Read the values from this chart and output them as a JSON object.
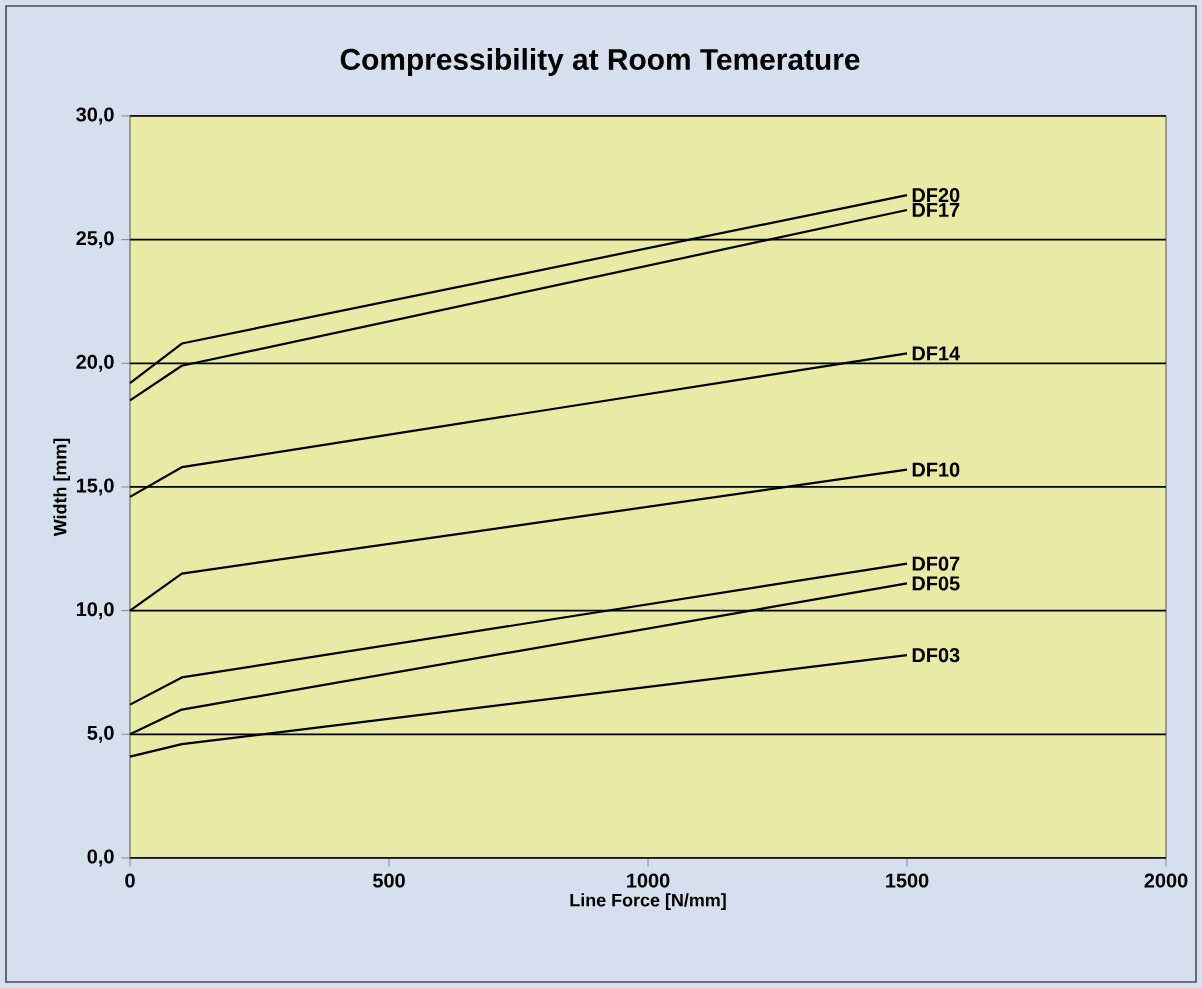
{
  "chart_data": {
    "type": "line",
    "title": "Compressibility at Room Temerature",
    "xlabel": "Line Force [N/mm]",
    "ylabel": "Width [mm]",
    "x": [
      0,
      100,
      1500
    ],
    "series": [
      {
        "name": "DF20",
        "color": "#000000",
        "values": [
          19.2,
          20.8,
          26.8
        ]
      },
      {
        "name": "DF17",
        "color": "#000000",
        "values": [
          18.5,
          19.9,
          26.2
        ]
      },
      {
        "name": "DF14",
        "color": "#000000",
        "values": [
          14.6,
          15.8,
          20.4
        ]
      },
      {
        "name": "DF10",
        "color": "#000000",
        "values": [
          10.0,
          11.5,
          15.7
        ]
      },
      {
        "name": "DF07",
        "color": "#000000",
        "values": [
          6.2,
          7.3,
          11.9
        ]
      },
      {
        "name": "DF05",
        "color": "#000000",
        "values": [
          5.0,
          6.0,
          11.1
        ]
      },
      {
        "name": "DF03",
        "color": "#000000",
        "values": [
          4.1,
          4.6,
          8.2
        ]
      }
    ],
    "xlim": [
      0,
      2000
    ],
    "xticks": [
      0,
      500,
      1000,
      1500,
      2000
    ],
    "ylim": [
      0,
      30
    ],
    "yticks": [
      {
        "value": 0,
        "label": "0,0"
      },
      {
        "value": 5,
        "label": "5,0"
      },
      {
        "value": 10,
        "label": "10,0"
      },
      {
        "value": 15,
        "label": "15,0"
      },
      {
        "value": 20,
        "label": "20,0"
      },
      {
        "value": 25,
        "label": "25,0"
      },
      {
        "value": 30,
        "label": "30,0"
      }
    ],
    "grid": "y",
    "line_style": "solid"
  }
}
